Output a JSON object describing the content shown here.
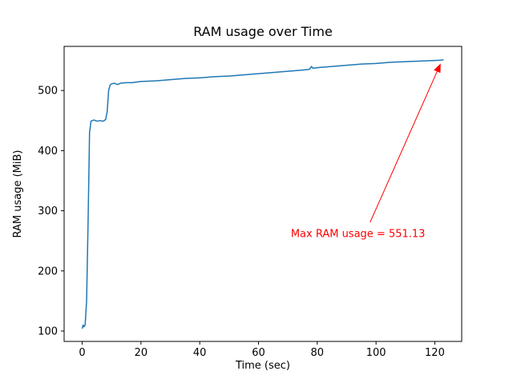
{
  "figure": {
    "background": "#ffffff",
    "spine_color": "#000000",
    "tick_color": "#000000"
  },
  "chart_data": {
    "type": "line",
    "title": "RAM usage over Time",
    "xlabel": "Time (sec)",
    "ylabel": "RAM usage (MiB)",
    "xlim": [
      -6.15,
      129.15
    ],
    "ylim": [
      82.7,
      573.4
    ],
    "xticks": [
      0,
      20,
      40,
      60,
      80,
      100,
      120
    ],
    "yticks": [
      100,
      200,
      300,
      400,
      500
    ],
    "grid": false,
    "legend": null,
    "line_color": "#1f77b4",
    "series": [
      {
        "name": "RAM usage",
        "x": [
          0,
          0.3,
          0.6,
          1,
          1.5,
          2,
          2.5,
          3,
          4,
          5,
          6,
          7,
          7.5,
          8,
          8.5,
          9,
          9.5,
          10,
          11,
          12,
          13,
          15,
          17,
          20,
          25,
          30,
          35,
          40,
          45,
          50,
          55,
          60,
          65,
          70,
          75,
          77,
          77.5,
          78,
          78.5,
          80,
          85,
          90,
          95,
          100,
          105,
          110,
          115,
          120,
          122,
          123
        ],
        "y": [
          104,
          110,
          107,
          110,
          150,
          280,
          430,
          449,
          451,
          449,
          450,
          449,
          450,
          452,
          465,
          500,
          509,
          511,
          512,
          510,
          512,
          513,
          513,
          515,
          516,
          518,
          520,
          521,
          523,
          524,
          526,
          528,
          530,
          532,
          534,
          535,
          536,
          540,
          537,
          538,
          540,
          542,
          544,
          545,
          547,
          548,
          549,
          550,
          550.5,
          551.13
        ]
      }
    ],
    "annotation": {
      "label": "Max RAM usage = 551.13",
      "color": "#ff0000",
      "text_xy": [
        71,
        256
      ],
      "arrow_tail_xy": [
        98,
        281
      ],
      "arrow_tip_xy": [
        122,
        545
      ]
    }
  }
}
